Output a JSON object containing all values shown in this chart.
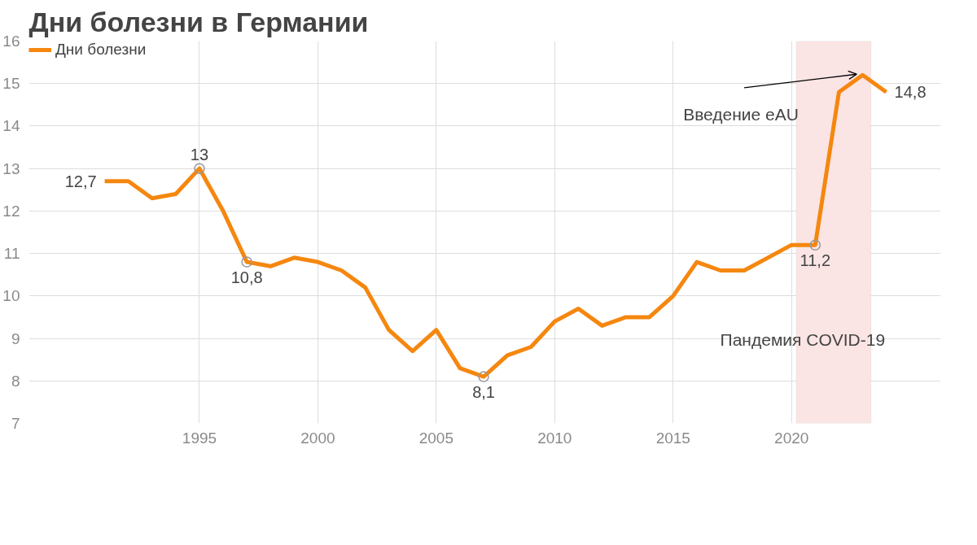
{
  "chart_data": {
    "type": "line",
    "title": "Дни болезни в Германии",
    "x": [
      1991,
      1992,
      1993,
      1994,
      1995,
      1996,
      1997,
      1998,
      1999,
      2000,
      2001,
      2002,
      2003,
      2004,
      2005,
      2006,
      2007,
      2008,
      2009,
      2010,
      2011,
      2012,
      2013,
      2014,
      2015,
      2016,
      2017,
      2018,
      2019,
      2020,
      2021,
      2022,
      2023,
      2024
    ],
    "series": [
      {
        "name": "Дни болезни",
        "color": "#f5870f",
        "values": [
          12.7,
          12.7,
          12.3,
          12.4,
          13.0,
          12.0,
          10.8,
          10.7,
          10.9,
          10.8,
          10.6,
          10.2,
          9.2,
          8.7,
          9.2,
          8.3,
          8.1,
          8.6,
          8.8,
          9.4,
          9.7,
          9.3,
          9.5,
          9.5,
          10.0,
          10.8,
          10.6,
          10.6,
          10.9,
          11.2,
          11.2,
          14.8,
          15.2,
          14.8
        ],
        "value_labels": [
          "12,7",
          null,
          null,
          null,
          "13",
          null,
          "10,8",
          null,
          null,
          null,
          null,
          null,
          null,
          null,
          null,
          null,
          "8,1",
          null,
          null,
          null,
          null,
          null,
          null,
          null,
          null,
          null,
          null,
          null,
          null,
          null,
          "11,2",
          null,
          null,
          "14,8"
        ]
      }
    ],
    "xlim": [
      1987.8,
      2026.3
    ],
    "xticks": [
      1995,
      2000,
      2005,
      2010,
      2015,
      2020
    ],
    "ylim": [
      7,
      16
    ],
    "yticks": [
      7,
      8,
      9,
      10,
      11,
      12,
      13,
      14,
      15,
      16
    ],
    "grid": true,
    "legend": "top left",
    "line_style": "solid",
    "bands": [
      {
        "axis": "x",
        "from": 2020.2,
        "to": 2023.35,
        "label": "Пандемия COVID-19",
        "color": "#fbe4e4"
      }
    ],
    "annotations": [
      {
        "text": "Введение eAU",
        "x": 2023,
        "y": 15.2
      }
    ]
  }
}
